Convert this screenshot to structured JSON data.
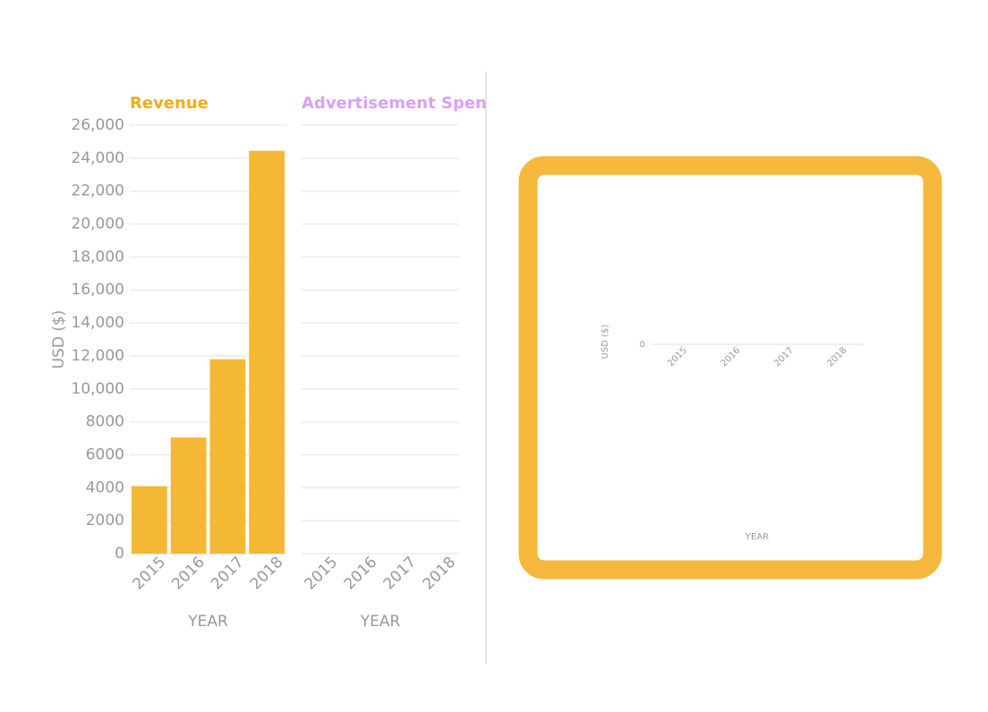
{
  "chart_data": [
    {
      "type": "bar",
      "title": "Revenue",
      "title_color": "#f0ad1c",
      "x_label": "YEAR",
      "y_label": "USD ($)",
      "categories": [
        "2015",
        "2016",
        "2017",
        "2018"
      ],
      "values": [
        4100,
        7050,
        11800,
        24450
      ],
      "color": "#f4b42a",
      "ylim": [
        0,
        26000
      ],
      "yticks": [
        0,
        2000,
        4000,
        6000,
        8000,
        {
          "value": 10000,
          "label": "10,000"
        },
        {
          "value": 12000,
          "label": "12,000"
        },
        {
          "value": 14000,
          "label": "14,000"
        },
        {
          "value": 16000,
          "label": "16,000"
        },
        {
          "value": 18000,
          "label": "18,000"
        },
        {
          "value": 20000,
          "label": "20,000"
        },
        {
          "value": 22000,
          "label": "22,000"
        },
        {
          "value": 24000,
          "label": "24,000"
        },
        {
          "value": 26000,
          "label": "26,000"
        }
      ],
      "grid": true
    },
    {
      "type": "bar",
      "title": "Advertisement Spen",
      "title_color": "#d9a0f5",
      "x_label": "YEAR",
      "categories": [
        "2015",
        "2016",
        "2017",
        "2018"
      ],
      "values": [
        null,
        null,
        null,
        null
      ],
      "color": "#d9a0f5",
      "ylim": [
        0,
        26000
      ],
      "yticks": [
        0,
        2000,
        4000,
        6000,
        8000,
        10000,
        12000,
        14000,
        16000,
        18000,
        20000,
        22000,
        24000,
        26000
      ],
      "grid": true
    },
    {
      "type": "bar",
      "x_label": "YEAR",
      "y_label": "USD ($)",
      "categories": [
        "2015",
        "2016",
        "2017",
        "2018"
      ],
      "values": [
        null,
        null,
        null,
        null
      ],
      "color": "#f4b42a",
      "yticks": [
        0
      ],
      "grid": true
    }
  ]
}
